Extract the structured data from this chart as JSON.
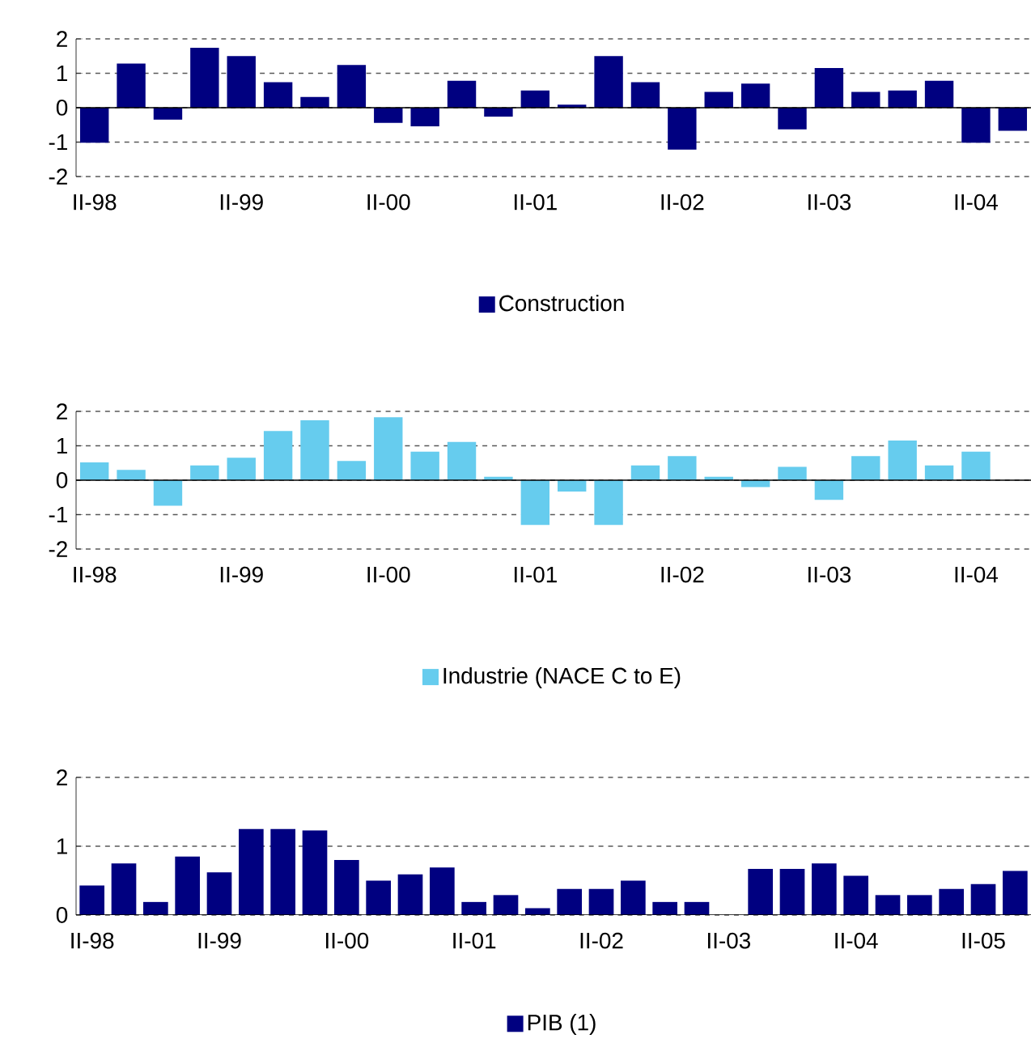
{
  "chart_data": [
    {
      "type": "bar",
      "categories": [
        "II-98",
        null,
        null,
        null,
        "II-99",
        null,
        null,
        null,
        "II-00",
        null,
        null,
        null,
        "II-01",
        null,
        null,
        null,
        "II-02",
        null,
        null,
        null,
        "II-03",
        null,
        null,
        null,
        "II-04",
        null
      ],
      "series": [
        {
          "name": "Construction",
          "color": "#000080",
          "values": [
            -1.02,
            1.28,
            -0.35,
            1.74,
            1.5,
            0.74,
            0.31,
            1.24,
            -0.44,
            -0.54,
            0.78,
            -0.26,
            0.5,
            0.09,
            1.5,
            0.74,
            -1.22,
            0.46,
            0.7,
            -0.63,
            1.15,
            0.46,
            0.5,
            0.78,
            -1.02,
            -0.67
          ]
        }
      ],
      "ylim": [
        -2,
        2
      ],
      "yticks": [
        -2,
        -1,
        0,
        1,
        2
      ],
      "grid": "y",
      "legend": "bottom"
    },
    {
      "type": "bar",
      "categories": [
        "II-98",
        null,
        null,
        null,
        "II-99",
        null,
        null,
        null,
        "II-00",
        null,
        null,
        null,
        "II-01",
        null,
        null,
        null,
        "II-02",
        null,
        null,
        null,
        "II-03",
        null,
        null,
        null,
        "II-04",
        null
      ],
      "series": [
        {
          "name": "Industrie (NACE C to E)",
          "color": "#66ccee",
          "values": [
            0.52,
            0.3,
            -0.74,
            0.43,
            0.65,
            1.43,
            1.74,
            0.56,
            1.83,
            0.83,
            1.11,
            0.1,
            -1.3,
            -0.33,
            -1.3,
            0.43,
            0.7,
            0.1,
            -0.2,
            0.39,
            -0.57,
            0.7,
            1.15,
            0.43,
            0.83,
            null
          ]
        }
      ],
      "ylim": [
        -2,
        2
      ],
      "yticks": [
        -2,
        -1,
        0,
        1,
        2
      ],
      "grid": "y",
      "legend": "bottom"
    },
    {
      "type": "bar",
      "categories": [
        "II-98",
        null,
        null,
        null,
        "II-99",
        null,
        null,
        null,
        "II-00",
        null,
        null,
        null,
        "II-01",
        null,
        null,
        null,
        "II-02",
        null,
        null,
        null,
        "II-03",
        null,
        null,
        null,
        "II-04",
        null,
        null,
        null,
        "II-05",
        null
      ],
      "series": [
        {
          "name": "PIB (1)",
          "color": "#000080",
          "values": [
            0.43,
            0.75,
            0.19,
            0.85,
            0.62,
            1.25,
            1.25,
            1.23,
            0.8,
            0.5,
            0.59,
            0.69,
            0.19,
            0.29,
            0.1,
            0.38,
            0.38,
            0.5,
            0.19,
            0.19,
            null,
            0.67,
            0.67,
            0.75,
            0.57,
            0.29,
            0.29,
            0.38,
            0.45,
            0.64
          ]
        }
      ],
      "ylim": [
        0,
        2
      ],
      "yticks": [
        0,
        1,
        2
      ],
      "grid": "y",
      "legend": "bottom"
    }
  ]
}
